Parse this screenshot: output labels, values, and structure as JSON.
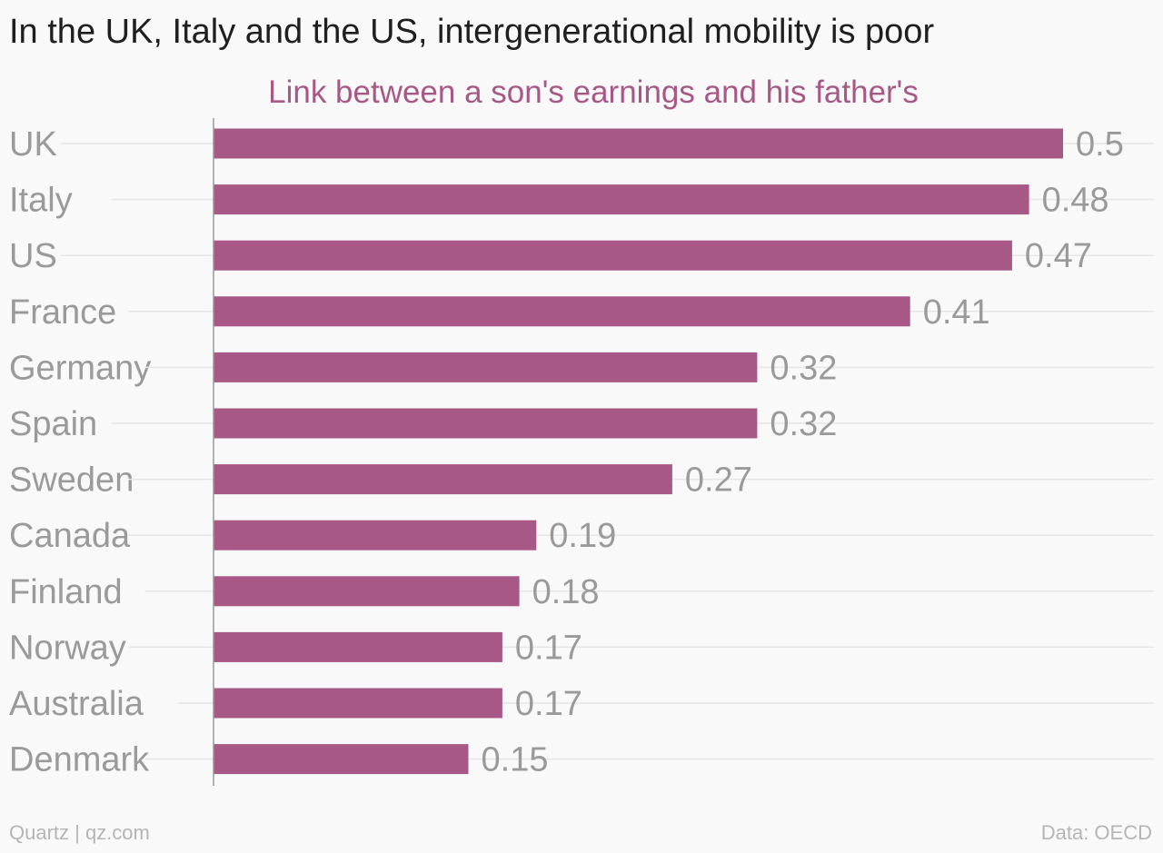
{
  "header": {
    "title": "In the UK, Italy and the US, intergenerational mobility is poor"
  },
  "footer": {
    "source_left": "Quartz | qz.com",
    "source_right": "Data: OECD"
  },
  "colors": {
    "bar": "#a85886",
    "subtitle": "#a85886",
    "label": "#9a9a9a",
    "gridline": "#e6e6e6",
    "axis": "#999999"
  },
  "chart_data": {
    "type": "bar",
    "orientation": "horizontal",
    "subtitle": "Link between a son's earnings and his father's",
    "categories": [
      "UK",
      "Italy",
      "US",
      "France",
      "Germany",
      "Spain",
      "Sweden",
      "Canada",
      "Finland",
      "Norway",
      "Australia",
      "Denmark"
    ],
    "values": [
      0.5,
      0.48,
      0.47,
      0.41,
      0.32,
      0.32,
      0.27,
      0.19,
      0.18,
      0.17,
      0.17,
      0.15
    ],
    "value_labels": [
      "0.5",
      "0.48",
      "0.47",
      "0.41",
      "0.32",
      "0.32",
      "0.27",
      "0.19",
      "0.18",
      "0.17",
      "0.17",
      "0.15"
    ],
    "xlim": [
      0,
      0.5
    ],
    "grid": true,
    "legend": "none"
  }
}
